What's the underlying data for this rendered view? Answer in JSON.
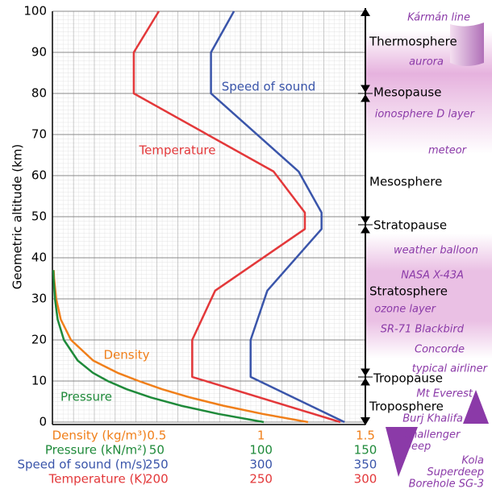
{
  "chart_data": {
    "type": "line",
    "y_label": "Geometric altitude (km)",
    "ylim": [
      0,
      100
    ],
    "yticks": [
      0,
      10,
      20,
      30,
      40,
      50,
      60,
      70,
      80,
      90,
      100
    ],
    "grid": true,
    "x_axes": [
      {
        "label": "Density (kg/m³)",
        "color": "#f07f1a",
        "xlim": [
          0,
          1.5
        ],
        "xticks": [
          0.5,
          1,
          1.5
        ]
      },
      {
        "label": "Pressure (kN/m²)",
        "color": "#1f8a3a",
        "xlim": [
          0,
          150
        ],
        "xticks": [
          50,
          100,
          150
        ]
      },
      {
        "label": "Speed of sound (m/s)",
        "color": "#3a55aa",
        "xlim": [
          200,
          350
        ],
        "xticks": [
          250,
          300,
          350
        ]
      },
      {
        "label": "Temperature (K)",
        "color": "#e3383a",
        "xlim": [
          150,
          300
        ],
        "xticks": [
          200,
          250,
          300
        ]
      }
    ],
    "series": [
      {
        "name": "Temperature",
        "color": "#e3383a",
        "axis": 3,
        "altitude": [
          0,
          11,
          20,
          32,
          47,
          51,
          61,
          80,
          90,
          100
        ],
        "values": [
          288,
          217,
          217,
          228,
          271,
          271,
          256,
          189,
          189,
          201
        ]
      },
      {
        "name": "Speed of sound",
        "color": "#3a55aa",
        "axis": 2,
        "altitude": [
          0,
          11,
          20,
          32,
          47,
          51,
          61,
          80,
          90,
          100
        ],
        "values": [
          340,
          295,
          295,
          303,
          329,
          329,
          318,
          276,
          276,
          287
        ]
      },
      {
        "name": "Density",
        "color": "#f07f1a",
        "axis": 0,
        "altitude": [
          0,
          2,
          4,
          6,
          8,
          10,
          12,
          15,
          20,
          25,
          30,
          35,
          37
        ],
        "values": [
          1.225,
          1.007,
          0.819,
          0.66,
          0.526,
          0.414,
          0.312,
          0.195,
          0.089,
          0.04,
          0.018,
          0.008,
          0.006
        ]
      },
      {
        "name": "Pressure",
        "color": "#1f8a3a",
        "axis": 1,
        "altitude": [
          0,
          2,
          4,
          6,
          8,
          10,
          12,
          15,
          20,
          25,
          30,
          35,
          37
        ],
        "values": [
          101.3,
          79.5,
          61.6,
          47.2,
          35.6,
          26.5,
          19.4,
          12.1,
          5.5,
          2.5,
          1.2,
          0.56,
          0.42
        ]
      }
    ]
  },
  "atmosphere_panel": {
    "layers": [
      "Thermosphere",
      "Mesopause",
      "Mesosphere",
      "Stratopause",
      "Stratosphere",
      "Tropopause",
      "Troposphere"
    ],
    "landmarks": [
      [
        "Kármán line"
      ],
      [
        "aurora"
      ],
      [
        "ionosphere D layer"
      ],
      [
        "meteor"
      ],
      [
        "weather balloon"
      ],
      [
        "NASA X-43A"
      ],
      [
        "ozone layer"
      ],
      [
        "SR-71 Blackbird"
      ],
      [
        "Concorde"
      ],
      [
        "typical airliner"
      ],
      [
        "Mt Everest"
      ],
      [
        "Burj Khalifa"
      ],
      [
        "Challenger",
        "Deep"
      ],
      [
        "Kola",
        "Superdeep",
        "Borehole SG-3"
      ]
    ]
  }
}
